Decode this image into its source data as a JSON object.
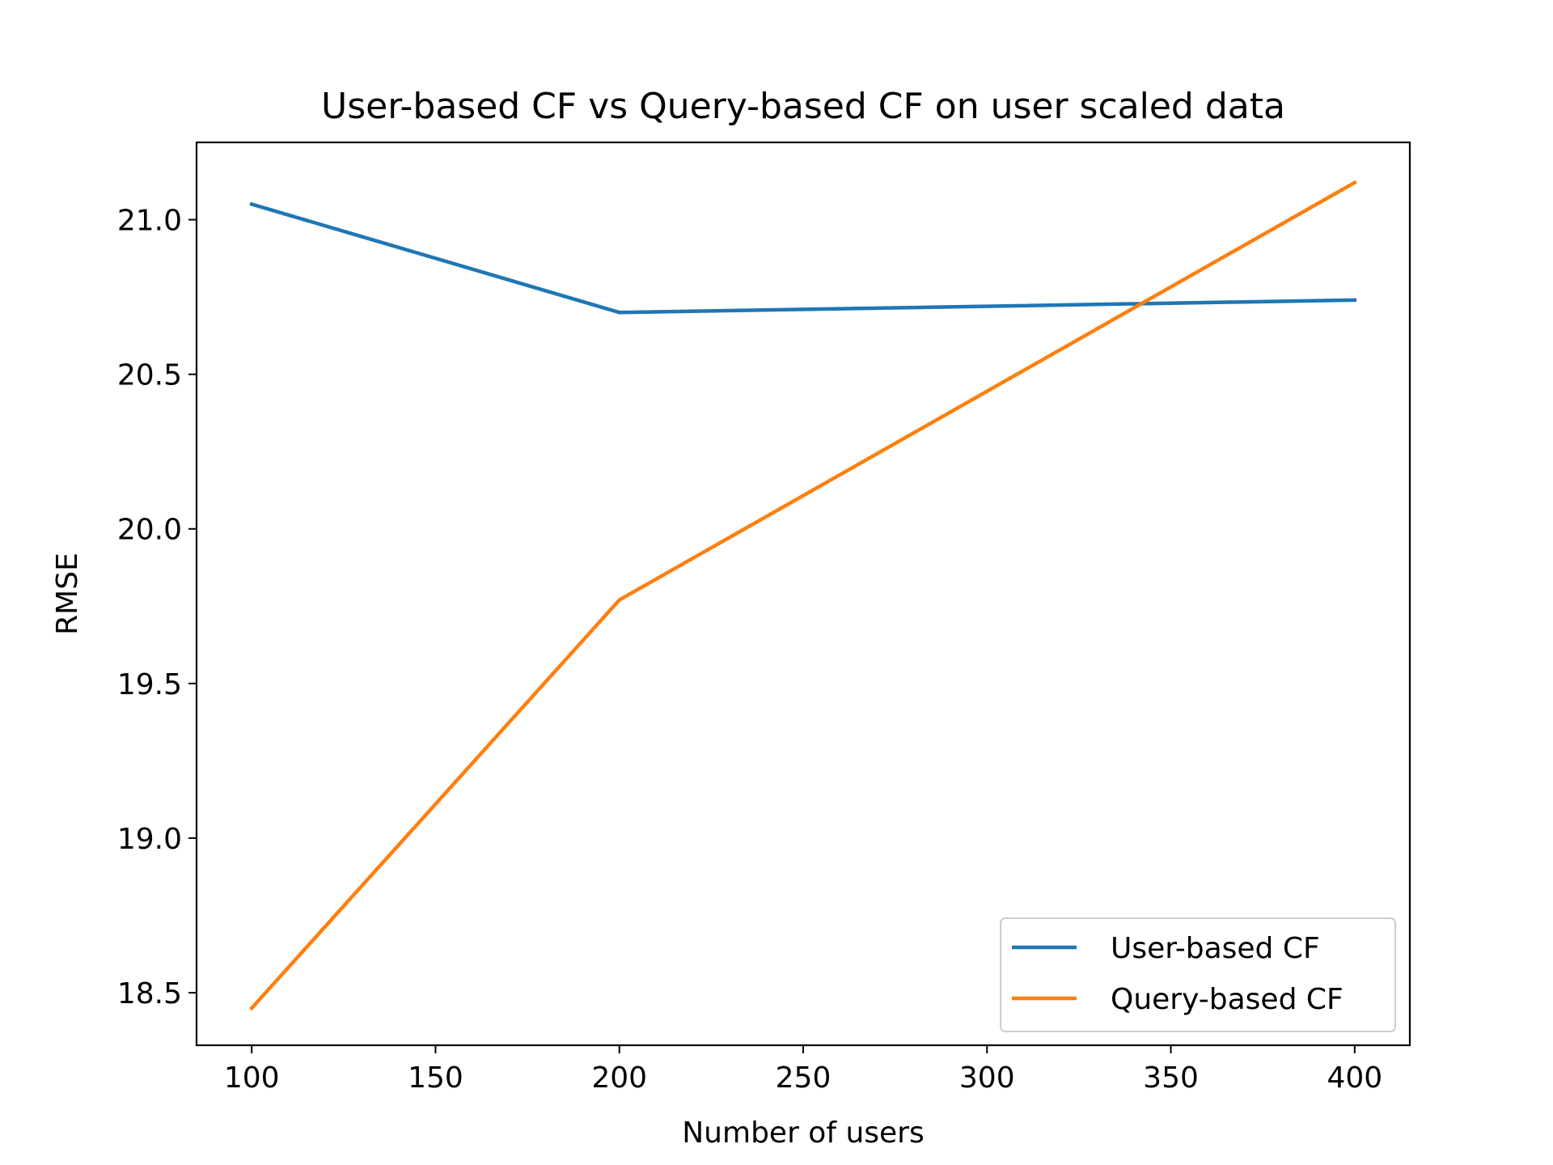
{
  "chart_data": {
    "type": "line",
    "title": "User-based CF vs Query-based CF on user scaled data",
    "xlabel": "Number of users",
    "ylabel": "RMSE",
    "x": [
      100,
      200,
      400
    ],
    "xlim": [
      85,
      415
    ],
    "ylim": [
      18.33,
      21.25
    ],
    "xticks": [
      100,
      150,
      200,
      250,
      300,
      350,
      400
    ],
    "yticks": [
      18.5,
      19.0,
      19.5,
      20.0,
      20.5,
      21.0
    ],
    "xtick_labels": [
      "100",
      "150",
      "200",
      "250",
      "300",
      "350",
      "400"
    ],
    "ytick_labels": [
      "18.5",
      "19.0",
      "19.5",
      "20.0",
      "20.5",
      "21.0"
    ],
    "grid": false,
    "legend_position": "lower-right",
    "series": [
      {
        "name": "User-based CF",
        "color": "#1f77b4",
        "values": [
          21.05,
          20.7,
          20.74
        ]
      },
      {
        "name": "Query-based CF",
        "color": "#ff7f0e",
        "values": [
          18.45,
          19.77,
          21.12
        ]
      }
    ]
  }
}
